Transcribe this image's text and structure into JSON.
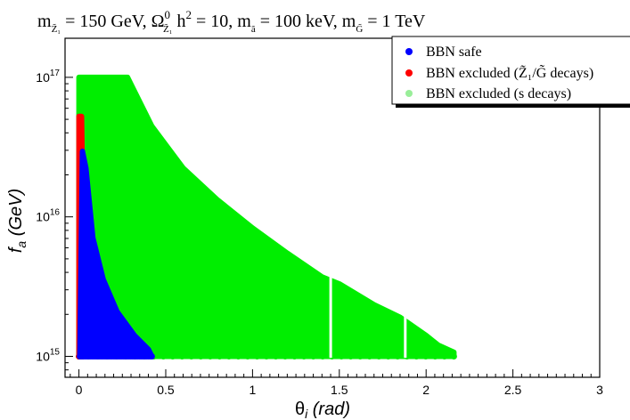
{
  "chart_data": {
    "type": "scatter",
    "title": "m_Z̃₁ = 150 GeV, Ω⁰_Z̃₁ h² = 10, m_ã = 100 keV, m_G̃ = 1 TeV",
    "title_parts": {
      "p1": "m",
      "p1_sub": "Z̃₁",
      "p2": " = 150 GeV, Ω",
      "p2_sup": "0",
      "p2_sub": "Z̃₁",
      "p3": " h",
      "p3_sup": "2",
      "p4": " = 10, m",
      "p4_sub": "ã",
      "p5": " = 100 keV, m",
      "p5_sub": "G̃",
      "p6": " = 1 TeV"
    },
    "xlabel_main": "θ",
    "xlabel_sub": "i",
    "xlabel_rest": " (rad)",
    "ylabel_main": "f",
    "ylabel_sub": "a",
    "ylabel_rest": " (GeV)",
    "xlim": [
      -0.08,
      3.0
    ],
    "ylim_log10": [
      14.85,
      17.28
    ],
    "y_scale": "log",
    "x_ticks": [
      0,
      0.5,
      1,
      1.5,
      2,
      2.5,
      3
    ],
    "x_tick_labels": [
      "0",
      "0.5",
      "1",
      "1.5",
      "2",
      "2.5",
      "3"
    ],
    "y_ticks_log10": [
      15,
      16,
      17
    ],
    "y_tick_labels": [
      {
        "base": "10",
        "exp": "15"
      },
      {
        "base": "10",
        "exp": "16"
      },
      {
        "base": "10",
        "exp": "17"
      }
    ],
    "grid": false,
    "legend_position": "top-right",
    "series": [
      {
        "name": "BBN excluded (s decays)",
        "color": "#00ee00",
        "legend_color": "#99ee99",
        "region_envelope": {
          "x": [
            0.0,
            0.28,
            0.3,
            0.42,
            0.6,
            0.8,
            1.0,
            1.2,
            1.4,
            1.5,
            1.7,
            1.85,
            2.0,
            2.07,
            2.16,
            2.16,
            0.0
          ],
          "y_log10": [
            17.0,
            17.0,
            16.95,
            16.65,
            16.35,
            16.12,
            15.92,
            15.74,
            15.57,
            15.52,
            15.37,
            15.28,
            15.15,
            15.08,
            15.03,
            15.0,
            15.0
          ]
        }
      },
      {
        "name": "BBN excluded (Z̃₁/G̃ decays)",
        "color": "#ff0000",
        "legend_color": "#ff0000",
        "region_envelope": {
          "x": [
            0.0,
            0.015,
            0.02,
            0.015,
            0.005,
            0.0
          ],
          "y_log10": [
            16.72,
            16.72,
            16.3,
            15.6,
            15.0,
            15.0
          ]
        }
      },
      {
        "name": "BBN safe",
        "color": "#0000ff",
        "legend_color": "#0000ff",
        "region_envelope": {
          "x": [
            0.005,
            0.02,
            0.04,
            0.08,
            0.14,
            0.22,
            0.32,
            0.4,
            0.42,
            0.005
          ],
          "y_log10": [
            15.0,
            16.47,
            16.35,
            15.85,
            15.55,
            15.32,
            15.15,
            15.05,
            15.0,
            15.0
          ]
        }
      }
    ]
  }
}
